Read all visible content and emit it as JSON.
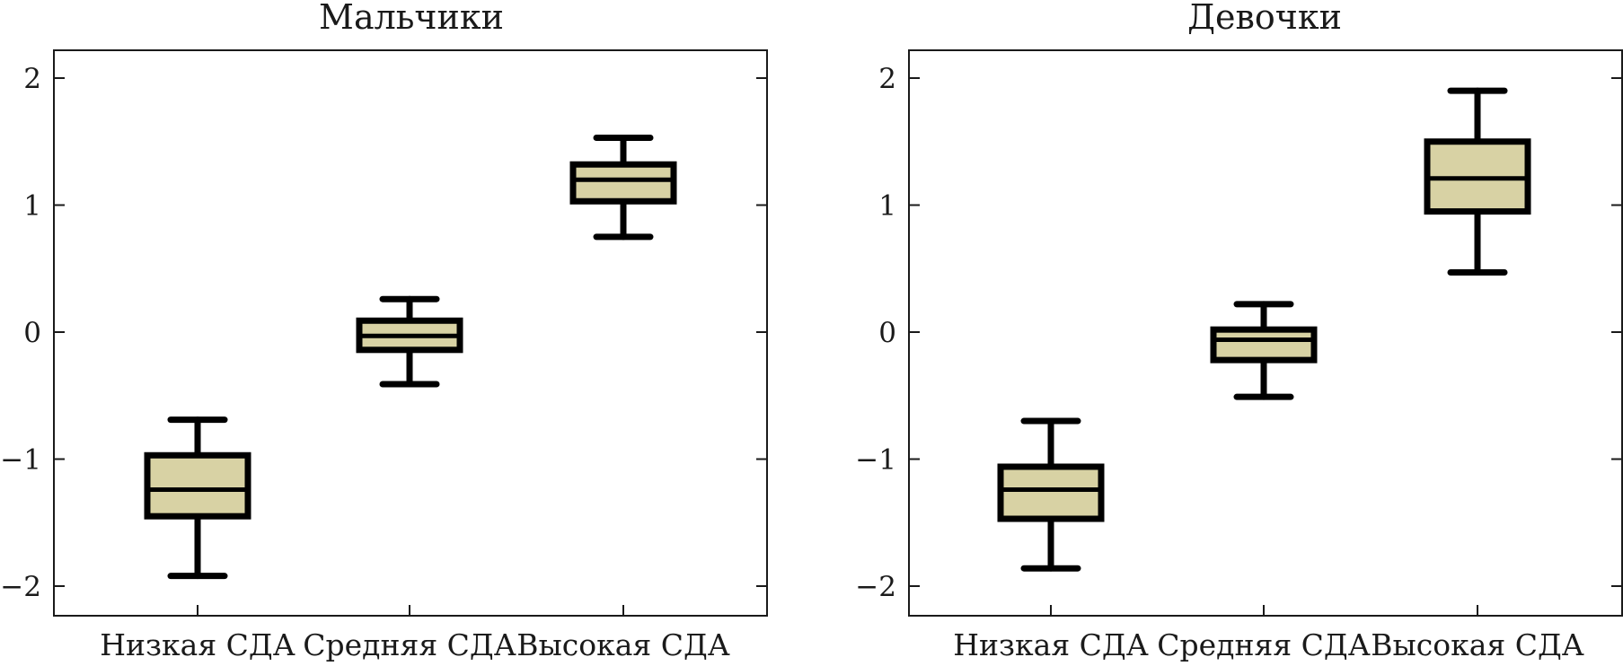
{
  "chart_data": [
    {
      "type": "box",
      "title": "Мальчики",
      "categories": [
        "Низкая СДА",
        "Средняя СДА",
        "Высокая СДА"
      ],
      "y_ticks": [
        "2",
        "1",
        "0",
        "−1",
        "−2"
      ],
      "ylim": [
        -2.2,
        2.22
      ],
      "box_color": "#d8d2a4",
      "boxes": [
        {
          "min": -1.92,
          "q1": -1.45,
          "median": -1.24,
          "q3": -0.97,
          "max": -0.69
        },
        {
          "min": -0.41,
          "q1": -0.14,
          "median": -0.03,
          "q3": 0.09,
          "max": 0.26
        },
        {
          "min": 0.75,
          "q1": 1.03,
          "median": 1.2,
          "q3": 1.32,
          "max": 1.53
        }
      ]
    },
    {
      "type": "box",
      "title": "Девочки",
      "categories": [
        "Низкая СДА",
        "Средняя СДА",
        "Высокая СДА"
      ],
      "y_ticks": [
        "2",
        "1",
        "0",
        "−1",
        "−2"
      ],
      "ylim": [
        -2.2,
        2.22
      ],
      "box_color": "#d8d2a4",
      "boxes": [
        {
          "min": -1.86,
          "q1": -1.47,
          "median": -1.24,
          "q3": -1.06,
          "max": -0.7
        },
        {
          "min": -0.51,
          "q1": -0.22,
          "median": -0.06,
          "q3": 0.02,
          "max": 0.22
        },
        {
          "min": 0.47,
          "q1": 0.95,
          "median": 1.21,
          "q3": 1.5,
          "max": 1.9
        }
      ]
    }
  ]
}
